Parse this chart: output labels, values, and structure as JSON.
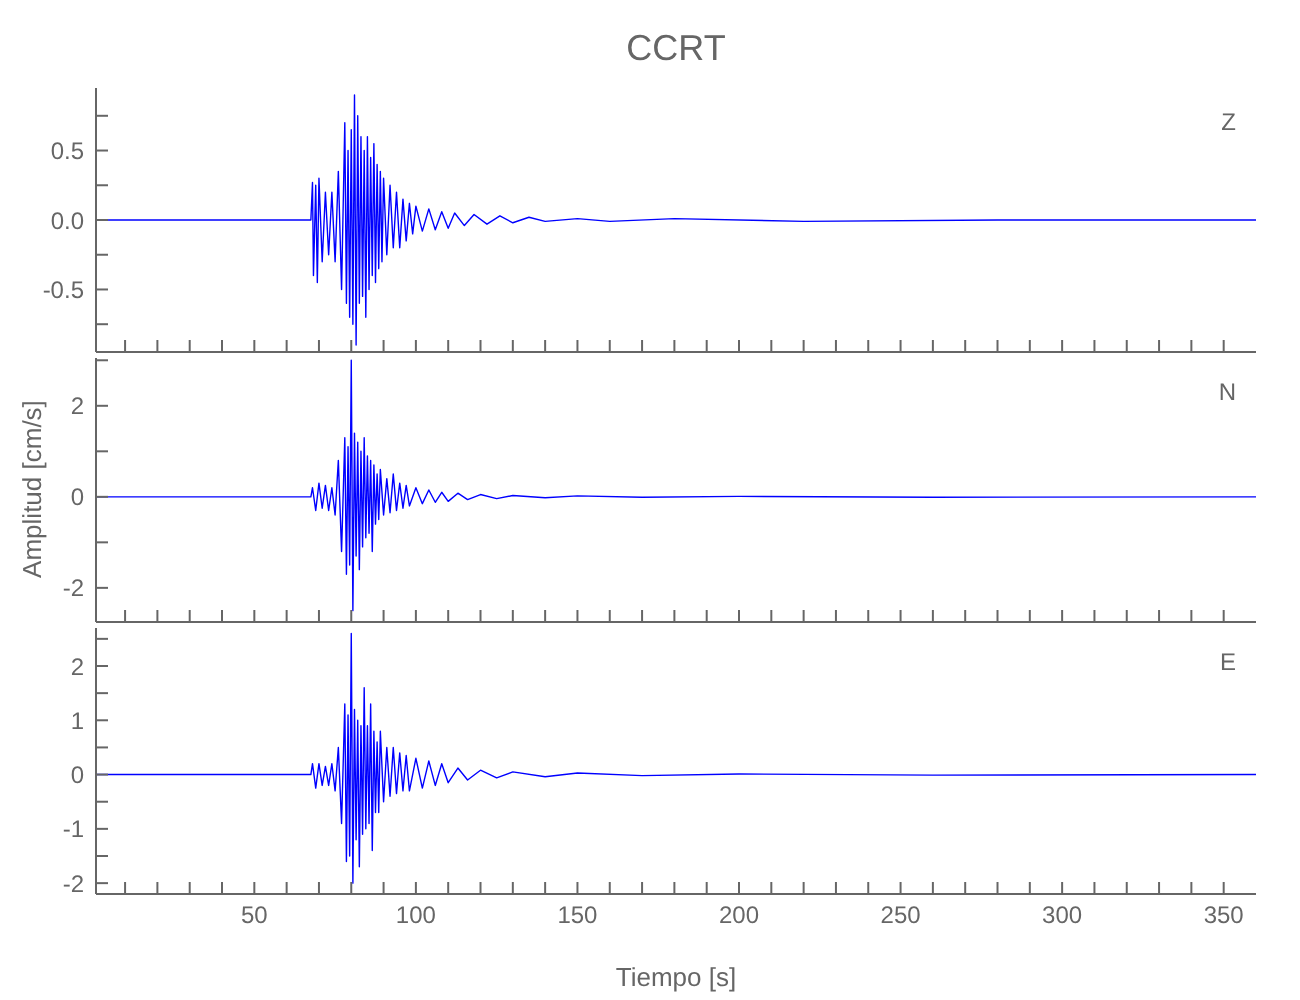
{
  "chart_data": [
    {
      "type": "line",
      "title": "CCRT",
      "annotations": [
        "Z"
      ],
      "tick_labels": "y",
      "xlim": [
        1,
        360
      ],
      "xticks": [
        {
          "value": 10,
          "label": null
        },
        {
          "value": 20,
          "label": null
        },
        {
          "value": 30,
          "label": null
        },
        {
          "value": 40,
          "label": null
        },
        50,
        {
          "value": 60,
          "label": null
        },
        {
          "value": 70,
          "label": null
        },
        {
          "value": 80,
          "label": null
        },
        {
          "value": 90,
          "label": null
        },
        100,
        {
          "value": 110,
          "label": null
        },
        {
          "value": 120,
          "label": null
        },
        {
          "value": 130,
          "label": null
        },
        {
          "value": 140,
          "label": null
        },
        150,
        {
          "value": 160,
          "label": null
        },
        {
          "value": 170,
          "label": null
        },
        {
          "value": 180,
          "label": null
        },
        {
          "value": 190,
          "label": null
        },
        200,
        {
          "value": 210,
          "label": null
        },
        {
          "value": 220,
          "label": null
        },
        {
          "value": 230,
          "label": null
        },
        {
          "value": 240,
          "label": null
        },
        250,
        {
          "value": 260,
          "label": null
        },
        {
          "value": 270,
          "label": null
        },
        {
          "value": 280,
          "label": null
        },
        {
          "value": 290,
          "label": null
        },
        300,
        {
          "value": 310,
          "label": null
        },
        {
          "value": 320,
          "label": null
        },
        {
          "value": 330,
          "label": null
        },
        {
          "value": 340,
          "label": null
        },
        350
      ],
      "ylim": [
        -0.95,
        0.95
      ],
      "yticks": [
        {
          "value": -0.75,
          "label": null
        },
        -0.5,
        {
          "value": -0.25,
          "label": null
        },
        {
          "value": 0,
          "label": "0.0"
        },
        {
          "value": 0.25,
          "label": null
        },
        0.5,
        {
          "value": 0.75,
          "label": null
        }
      ],
      "series": [
        {
          "color": "#0000ff",
          "x": [
            1,
            30,
            67.5,
            68,
            68.3,
            69,
            69.5,
            70,
            71,
            72,
            73,
            74,
            75,
            76,
            77,
            78,
            78.5,
            79,
            79.5,
            80,
            80.5,
            81,
            81.5,
            82,
            82.5,
            83,
            83.5,
            84,
            84.5,
            85,
            85.5,
            86,
            86.5,
            87,
            87.5,
            88,
            88.5,
            89,
            89.5,
            90,
            91,
            92,
            93,
            94,
            95,
            96,
            97,
            98,
            99,
            100,
            102,
            104,
            106,
            108,
            110,
            112,
            115,
            118,
            122,
            126,
            130,
            135,
            140,
            150,
            160,
            180,
            220,
            280,
            360
          ],
          "values": [
            0,
            0,
            0,
            0.27,
            -0.4,
            0.25,
            -0.45,
            0.3,
            -0.3,
            0.2,
            -0.25,
            0.2,
            -0.3,
            0.35,
            -0.5,
            0.7,
            -0.6,
            0.5,
            -0.7,
            0.65,
            -0.75,
            0.9,
            -0.9,
            0.75,
            -0.6,
            0.6,
            -0.55,
            0.5,
            -0.7,
            0.6,
            -0.5,
            0.45,
            -0.4,
            0.55,
            -0.45,
            0.4,
            -0.35,
            0.35,
            -0.3,
            0.3,
            -0.25,
            0.25,
            -0.2,
            0.2,
            -0.2,
            0.15,
            -0.15,
            0.12,
            -0.1,
            0.1,
            -0.08,
            0.08,
            -0.07,
            0.06,
            -0.06,
            0.05,
            -0.04,
            0.04,
            -0.03,
            0.03,
            -0.02,
            0.02,
            -0.01,
            0.01,
            -0.01,
            0.01,
            -0.01,
            0,
            0
          ]
        }
      ]
    },
    {
      "type": "line",
      "ylabel": "Amplitud [cm/s]",
      "annotations": [
        "N"
      ],
      "tick_labels": "y",
      "xlim": [
        1,
        360
      ],
      "xticks": [
        {
          "value": 10,
          "label": null
        },
        {
          "value": 20,
          "label": null
        },
        {
          "value": 30,
          "label": null
        },
        {
          "value": 40,
          "label": null
        },
        50,
        {
          "value": 60,
          "label": null
        },
        {
          "value": 70,
          "label": null
        },
        {
          "value": 80,
          "label": null
        },
        {
          "value": 90,
          "label": null
        },
        100,
        {
          "value": 110,
          "label": null
        },
        {
          "value": 120,
          "label": null
        },
        {
          "value": 130,
          "label": null
        },
        {
          "value": 140,
          "label": null
        },
        150,
        {
          "value": 160,
          "label": null
        },
        {
          "value": 170,
          "label": null
        },
        {
          "value": 180,
          "label": null
        },
        {
          "value": 190,
          "label": null
        },
        200,
        {
          "value": 210,
          "label": null
        },
        {
          "value": 220,
          "label": null
        },
        {
          "value": 230,
          "label": null
        },
        {
          "value": 240,
          "label": null
        },
        250,
        {
          "value": 260,
          "label": null
        },
        {
          "value": 270,
          "label": null
        },
        {
          "value": 280,
          "label": null
        },
        {
          "value": 290,
          "label": null
        },
        300,
        {
          "value": 310,
          "label": null
        },
        {
          "value": 320,
          "label": null
        },
        {
          "value": 330,
          "label": null
        },
        {
          "value": 340,
          "label": null
        },
        350
      ],
      "ylim": [
        -2.75,
        3.05
      ],
      "yticks": [
        -2,
        {
          "value": -1,
          "label": null
        },
        0,
        {
          "value": 1,
          "label": null
        },
        2,
        {
          "value": 3,
          "label": null
        }
      ],
      "series": [
        {
          "color": "#0000ff",
          "x": [
            1,
            30,
            67.5,
            68,
            69,
            70,
            71,
            72,
            73,
            74,
            75,
            76,
            77,
            78,
            78.5,
            79,
            79.5,
            80,
            80.5,
            81,
            81.5,
            82,
            82.5,
            83,
            83.5,
            84,
            84.5,
            85,
            85.5,
            86,
            86.5,
            87,
            87.5,
            88,
            88.5,
            89,
            90,
            91,
            92,
            93,
            94,
            95,
            96,
            97,
            98,
            100,
            102,
            104,
            106,
            108,
            110,
            113,
            116,
            120,
            125,
            130,
            140,
            150,
            170,
            200,
            260,
            360
          ],
          "values": [
            0,
            0,
            0,
            0.2,
            -0.3,
            0.3,
            -0.25,
            0.25,
            -0.3,
            0.2,
            -0.4,
            0.8,
            -1.2,
            1.3,
            -1.7,
            1.1,
            -1.5,
            3.0,
            -2.5,
            1.4,
            -1.3,
            1.2,
            -1.6,
            1.0,
            -1.1,
            1.3,
            -0.9,
            0.9,
            -0.8,
            0.8,
            -1.2,
            0.7,
            -0.6,
            0.5,
            -0.5,
            0.6,
            -0.4,
            0.4,
            -0.35,
            0.5,
            -0.3,
            0.3,
            -0.25,
            0.25,
            -0.2,
            0.2,
            -0.15,
            0.15,
            -0.12,
            0.1,
            -0.1,
            0.08,
            -0.06,
            0.05,
            -0.04,
            0.03,
            -0.02,
            0.02,
            -0.01,
            0.01,
            -0.01,
            0
          ]
        }
      ]
    },
    {
      "type": "line",
      "xlabel": "Tiempo [s]",
      "annotations": [
        "E"
      ],
      "xlim": [
        1,
        360
      ],
      "xticks": [
        {
          "value": 10,
          "label": null
        },
        {
          "value": 20,
          "label": null
        },
        {
          "value": 30,
          "label": null
        },
        {
          "value": 40,
          "label": null
        },
        50,
        {
          "value": 60,
          "label": null
        },
        {
          "value": 70,
          "label": null
        },
        {
          "value": 80,
          "label": null
        },
        {
          "value": 90,
          "label": null
        },
        100,
        {
          "value": 110,
          "label": null
        },
        {
          "value": 120,
          "label": null
        },
        {
          "value": 130,
          "label": null
        },
        {
          "value": 140,
          "label": null
        },
        150,
        {
          "value": 160,
          "label": null
        },
        {
          "value": 170,
          "label": null
        },
        {
          "value": 180,
          "label": null
        },
        {
          "value": 190,
          "label": null
        },
        200,
        {
          "value": 210,
          "label": null
        },
        {
          "value": 220,
          "label": null
        },
        {
          "value": 230,
          "label": null
        },
        {
          "value": 240,
          "label": null
        },
        250,
        {
          "value": 260,
          "label": null
        },
        {
          "value": 270,
          "label": null
        },
        {
          "value": 280,
          "label": null
        },
        {
          "value": 290,
          "label": null
        },
        300,
        {
          "value": 310,
          "label": null
        },
        {
          "value": 320,
          "label": null
        },
        {
          "value": 330,
          "label": null
        },
        {
          "value": 340,
          "label": null
        },
        350
      ],
      "ylim": [
        -2.2,
        2.7
      ],
      "yticks": [
        -2,
        {
          "value": -1.5,
          "label": null
        },
        -1,
        {
          "value": -0.5,
          "label": null
        },
        0,
        {
          "value": 0.5,
          "label": null
        },
        1,
        {
          "value": 1.5,
          "label": null
        },
        2,
        {
          "value": 2.5,
          "label": null
        }
      ],
      "series": [
        {
          "color": "#0000ff",
          "x": [
            1,
            30,
            67.5,
            68,
            69,
            70,
            71,
            72,
            73,
            74,
            75,
            76,
            77,
            78,
            78.5,
            79,
            79.5,
            80,
            80.5,
            81,
            81.5,
            82,
            82.5,
            83,
            83.5,
            84,
            84.5,
            85,
            85.5,
            86,
            86.5,
            87,
            87.5,
            88,
            88.5,
            89,
            90,
            91,
            92,
            93,
            94,
            95,
            96,
            97,
            98,
            100,
            102,
            104,
            106,
            108,
            110,
            113,
            116,
            120,
            125,
            130,
            140,
            150,
            170,
            200,
            260,
            360
          ],
          "values": [
            0,
            0,
            0,
            0.2,
            -0.25,
            0.2,
            -0.2,
            0.15,
            -0.2,
            0.2,
            -0.3,
            0.5,
            -0.9,
            1.3,
            -1.6,
            1.1,
            -1.5,
            2.6,
            -2.0,
            1.2,
            -1.2,
            1.0,
            -1.7,
            0.9,
            -1.1,
            1.6,
            -1.0,
            0.9,
            -0.9,
            1.3,
            -1.4,
            0.8,
            -0.7,
            0.6,
            -0.7,
            0.8,
            -0.5,
            0.5,
            -0.4,
            0.5,
            -0.35,
            0.4,
            -0.3,
            0.35,
            -0.3,
            0.3,
            -0.25,
            0.25,
            -0.2,
            0.2,
            -0.15,
            0.12,
            -0.1,
            0.08,
            -0.06,
            0.05,
            -0.04,
            0.03,
            -0.02,
            0.01,
            -0.01,
            0
          ]
        }
      ]
    }
  ]
}
